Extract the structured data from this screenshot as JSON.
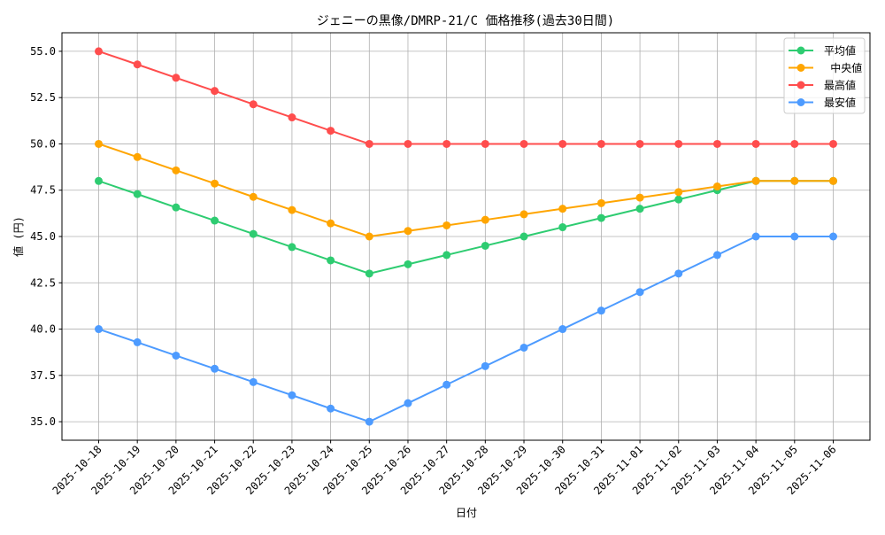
{
  "chart_data": {
    "type": "line",
    "title": "ジェニーの黒像/DMRP-21/C 価格推移(過去30日間)",
    "xlabel": "日付",
    "ylabel": "値 (円)",
    "ylim": [
      34.0,
      56.0
    ],
    "yticks": [
      35.0,
      37.5,
      40.0,
      42.5,
      45.0,
      47.5,
      50.0,
      52.5,
      55.0
    ],
    "ytick_labels": [
      "35.0",
      "37.5",
      "40.0",
      "42.5",
      "45.0",
      "47.5",
      "50.0",
      "52.5",
      "55.0"
    ],
    "grid": true,
    "legend_position": "top-right",
    "x": [
      "2025-10-18",
      "2025-10-19",
      "2025-10-20",
      "2025-10-21",
      "2025-10-22",
      "2025-10-23",
      "2025-10-24",
      "2025-10-25",
      "2025-10-26",
      "2025-10-27",
      "2025-10-28",
      "2025-10-29",
      "2025-10-30",
      "2025-10-31",
      "2025-11-01",
      "2025-11-02",
      "2025-11-03",
      "2025-11-04",
      "2025-11-05",
      "2025-11-06"
    ],
    "series": [
      {
        "name": "平均値",
        "color": "#2ecc71",
        "values": [
          48,
          47.29,
          46.57,
          45.86,
          45.14,
          44.43,
          43.71,
          43,
          43.5,
          44,
          44.5,
          45,
          45.5,
          46,
          46.5,
          47,
          47.5,
          48,
          48,
          48
        ]
      },
      {
        "name": " 中央値",
        "color": "#ffa500",
        "values": [
          50,
          49.29,
          48.57,
          47.86,
          47.14,
          46.43,
          45.71,
          45,
          45.3,
          45.6,
          45.9,
          46.2,
          46.5,
          46.8,
          47.1,
          47.4,
          47.7,
          48,
          48,
          48
        ]
      },
      {
        "name": "最高値",
        "color": "#ff4d4d",
        "values": [
          55,
          54.29,
          53.57,
          52.86,
          52.14,
          51.43,
          50.71,
          50,
          50,
          50,
          50,
          50,
          50,
          50,
          50,
          50,
          50,
          50,
          50,
          50
        ]
      },
      {
        "name": "最安値",
        "color": "#4d9bff",
        "values": [
          40,
          39.29,
          38.57,
          37.86,
          37.14,
          36.43,
          35.71,
          35,
          36,
          37,
          38,
          39,
          40,
          41,
          42,
          43,
          44,
          45,
          45,
          45
        ]
      }
    ]
  }
}
